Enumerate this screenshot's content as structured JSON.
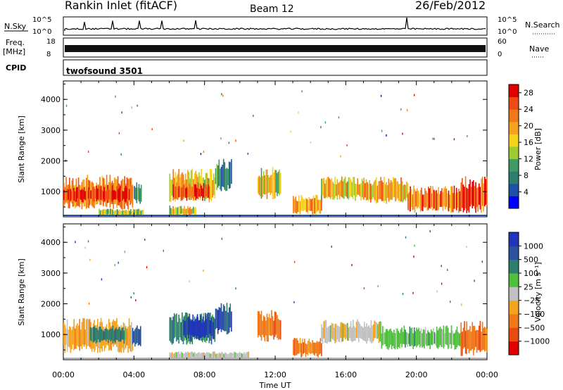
{
  "header": {
    "station": "Rankin Inlet (fitACF)",
    "beam": "Beam 12",
    "date": "26/Feb/2012"
  },
  "nsky_panel": {
    "left_label": "N.Sky",
    "left_ticks": [
      "10^5",
      "10^0"
    ],
    "right_label": "N.Search",
    "right_ticks": [
      "10^5",
      "10^0"
    ]
  },
  "freq_panel": {
    "left_label_1": "Freq.",
    "left_label_2": "[MHz]",
    "left_ticks": [
      "18",
      "8"
    ],
    "right_label": "Nave",
    "right_ticks": [
      "60",
      "0"
    ]
  },
  "cpid_panel": {
    "label": "CPID",
    "text": "twofsound 3501"
  },
  "colors": {
    "power_scale": [
      "#0000ff",
      "#1f50a8",
      "#2e7d6e",
      "#3f9a63",
      "#9ccc2e",
      "#f5d21c",
      "#f5a21c",
      "#f07818",
      "#f04a14",
      "#e00000"
    ],
    "velocity_scale": [
      "#2233bb",
      "#2a52a0",
      "#2e7d6e",
      "#4ec03c",
      "#c0c0c0",
      "#f5a21c",
      "#f07818",
      "#e84a12",
      "#e00000"
    ]
  },
  "chart_data": [
    {
      "type": "heatmap",
      "name": "power",
      "ylabel": "Slant Range [km]",
      "yticks": [
        1000,
        2000,
        3000,
        4000
      ],
      "ylim": [
        180,
        4600
      ],
      "xlim": [
        0,
        24
      ],
      "colorbar_label": "Power [dB]",
      "colorbar_ticks": [
        4,
        8,
        12,
        16,
        20,
        24,
        28
      ],
      "colorbar_range": [
        0,
        30
      ],
      "regions": [
        {
          "t0": 0.0,
          "t1": 3.9,
          "r0": 400,
          "r1": 1550,
          "v": 22
        },
        {
          "t0": 0.0,
          "t1": 3.9,
          "r0": 650,
          "r1": 1200,
          "v": 28
        },
        {
          "t0": 4.0,
          "t1": 4.4,
          "r0": 600,
          "r1": 1300,
          "v": 10
        },
        {
          "t0": 6.0,
          "t1": 8.6,
          "r0": 650,
          "r1": 1750,
          "v": 18
        },
        {
          "t0": 6.2,
          "t1": 8.3,
          "r0": 700,
          "r1": 1300,
          "v": 26
        },
        {
          "t0": 8.6,
          "t1": 9.5,
          "r0": 1000,
          "r1": 2100,
          "v": 6
        },
        {
          "t0": 11.0,
          "t1": 12.3,
          "r0": 750,
          "r1": 1800,
          "v": 16
        },
        {
          "t0": 13.0,
          "t1": 14.6,
          "r0": 250,
          "r1": 900,
          "v": 22
        },
        {
          "t0": 14.6,
          "t1": 17.0,
          "r0": 700,
          "r1": 1500,
          "v": 18
        },
        {
          "t0": 17.0,
          "t1": 19.5,
          "r0": 600,
          "r1": 1500,
          "v": 20
        },
        {
          "t0": 19.5,
          "t1": 22.5,
          "r0": 300,
          "r1": 1200,
          "v": 24
        },
        {
          "t0": 22.5,
          "t1": 24.0,
          "r0": 300,
          "r1": 1500,
          "v": 27
        },
        {
          "t0": 6.0,
          "t1": 7.5,
          "r0": 200,
          "r1": 550,
          "v": 16
        },
        {
          "t0": 2.0,
          "t1": 4.5,
          "r0": 200,
          "r1": 450,
          "v": 14
        }
      ]
    },
    {
      "type": "heatmap",
      "name": "velocity",
      "ylabel": "Slant Range [km]",
      "yticks": [
        1000,
        2000,
        3000,
        4000
      ],
      "ylim": [
        180,
        4600
      ],
      "xlim": [
        0,
        24
      ],
      "xlabel": "Time UT",
      "xticks": [
        "00:00",
        "04:00",
        "08:00",
        "12:00",
        "16:00",
        "20:00",
        "00:00"
      ],
      "colorbar_label": "Velocity [m s⁻¹]",
      "colorbar_ticks": [
        "1000",
        "500",
        "100",
        "25",
        "−25",
        "−100",
        "−500",
        "−1000"
      ],
      "regions": [
        {
          "t0": 0.0,
          "t1": 3.9,
          "r0": 400,
          "r1": 1550,
          "c": 5
        },
        {
          "t0": 1.5,
          "t1": 3.5,
          "r0": 700,
          "r1": 1300,
          "c": 2
        },
        {
          "t0": 3.9,
          "t1": 4.4,
          "r0": 600,
          "r1": 1300,
          "c": 1
        },
        {
          "t0": 6.0,
          "t1": 8.6,
          "r0": 650,
          "r1": 1750,
          "c": 2
        },
        {
          "t0": 6.8,
          "t1": 8.5,
          "r0": 800,
          "r1": 1700,
          "c": 0
        },
        {
          "t0": 8.6,
          "t1": 9.5,
          "r0": 1000,
          "r1": 2100,
          "c": 1
        },
        {
          "t0": 11.0,
          "t1": 12.3,
          "r0": 750,
          "r1": 1800,
          "c": 6
        },
        {
          "t0": 13.0,
          "t1": 14.6,
          "r0": 250,
          "r1": 900,
          "c": 6
        },
        {
          "t0": 14.6,
          "t1": 18.0,
          "r0": 700,
          "r1": 1500,
          "c": 4
        },
        {
          "t0": 18.0,
          "t1": 22.5,
          "r0": 500,
          "r1": 1300,
          "c": 3
        },
        {
          "t0": 22.5,
          "t1": 24.0,
          "r0": 300,
          "r1": 1500,
          "c": 6
        },
        {
          "t0": 6.0,
          "t1": 10.5,
          "r0": 200,
          "r1": 450,
          "c": 4
        }
      ]
    }
  ]
}
